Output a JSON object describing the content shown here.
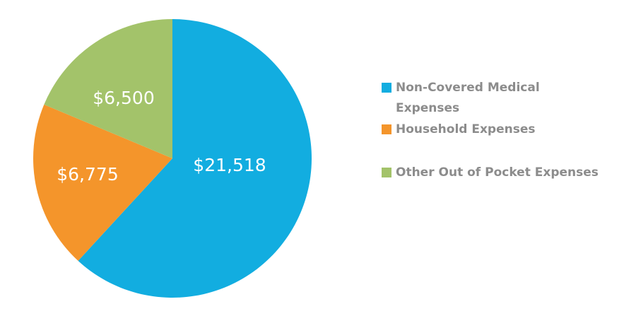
{
  "chart_data": {
    "type": "pie",
    "slices": [
      {
        "label": "Non-Covered Medical Expenses",
        "legend_lines": [
          "Non-Covered Medical",
          "Expenses"
        ],
        "value": 21518,
        "display": "$21,518",
        "color": "#12ade0"
      },
      {
        "label": "Household Expenses",
        "legend_lines": [
          "Household Expenses"
        ],
        "value": 6775,
        "display": "$6,775",
        "color": "#f4952b"
      },
      {
        "label": "Other Out of Pocket Expenses",
        "legend_lines": [
          "Other Out of Pocket Expenses"
        ],
        "value": 6500,
        "display": "$6,500",
        "color": "#a3c36a"
      }
    ],
    "start": "12 o'clock",
    "direction": "clockwise",
    "legend_position": "right"
  }
}
